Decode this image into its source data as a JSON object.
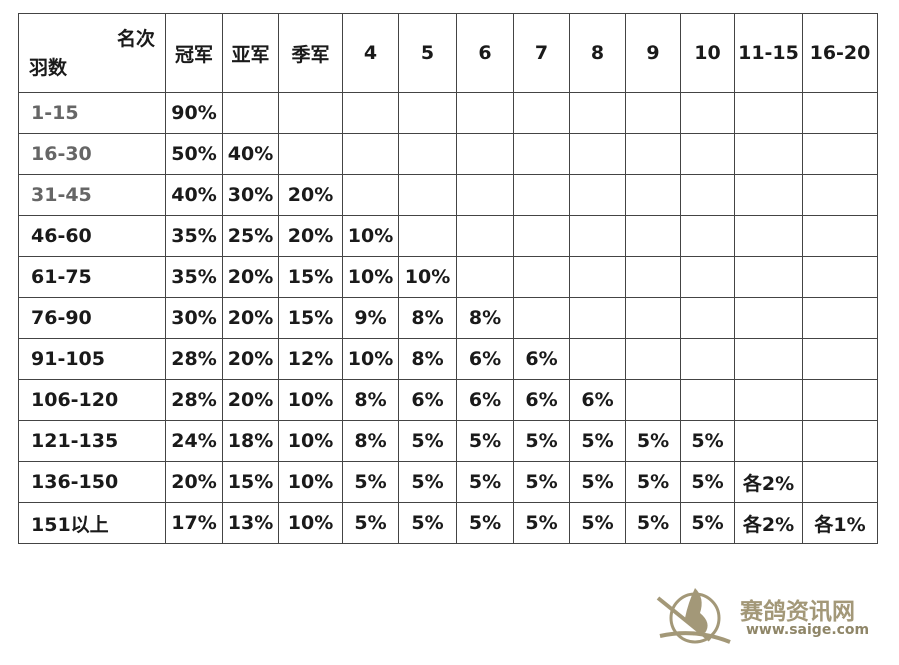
{
  "table": {
    "corner_top": "名次",
    "corner_bottom": "羽数",
    "columns": [
      "冠军",
      "亚军",
      "季军",
      "4",
      "5",
      "6",
      "7",
      "8",
      "9",
      "10",
      "11-15",
      "16-20"
    ],
    "rows": [
      {
        "label": "1-15",
        "cells": [
          "90%",
          "",
          "",
          "",
          "",
          "",
          "",
          "",
          "",
          "",
          "",
          ""
        ]
      },
      {
        "label": "16-30",
        "cells": [
          "50%",
          "40%",
          "",
          "",
          "",
          "",
          "",
          "",
          "",
          "",
          "",
          ""
        ]
      },
      {
        "label": "31-45",
        "cells": [
          "40%",
          "30%",
          "20%",
          "",
          "",
          "",
          "",
          "",
          "",
          "",
          "",
          ""
        ]
      },
      {
        "label": "46-60",
        "cells": [
          "35%",
          "25%",
          "20%",
          "10%",
          "",
          "",
          "",
          "",
          "",
          "",
          "",
          ""
        ]
      },
      {
        "label": "61-75",
        "cells": [
          "35%",
          "20%",
          "15%",
          "10%",
          "10%",
          "",
          "",
          "",
          "",
          "",
          "",
          ""
        ]
      },
      {
        "label": "76-90",
        "cells": [
          "30%",
          "20%",
          "15%",
          "9%",
          "8%",
          "8%",
          "",
          "",
          "",
          "",
          "",
          ""
        ]
      },
      {
        "label": "91-105",
        "cells": [
          "28%",
          "20%",
          "12%",
          "10%",
          "8%",
          "6%",
          "6%",
          "",
          "",
          "",
          "",
          ""
        ]
      },
      {
        "label": "106-120",
        "cells": [
          "28%",
          "20%",
          "10%",
          "8%",
          "6%",
          "6%",
          "6%",
          "6%",
          "",
          "",
          "",
          ""
        ]
      },
      {
        "label": "121-135",
        "cells": [
          "24%",
          "18%",
          "10%",
          "8%",
          "5%",
          "5%",
          "5%",
          "5%",
          "5%",
          "5%",
          "",
          ""
        ]
      },
      {
        "label": "136-150",
        "cells": [
          "20%",
          "15%",
          "10%",
          "5%",
          "5%",
          "5%",
          "5%",
          "5%",
          "5%",
          "5%",
          "各2%",
          ""
        ]
      },
      {
        "label": "151以上",
        "cells": [
          "17%",
          "13%",
          "10%",
          "5%",
          "5%",
          "5%",
          "5%",
          "5%",
          "5%",
          "5%",
          "各2%",
          "各1%"
        ]
      }
    ]
  },
  "watermark": {
    "name": "赛鸽资讯网",
    "url": "www.saige.com",
    "color": "#a39878"
  }
}
